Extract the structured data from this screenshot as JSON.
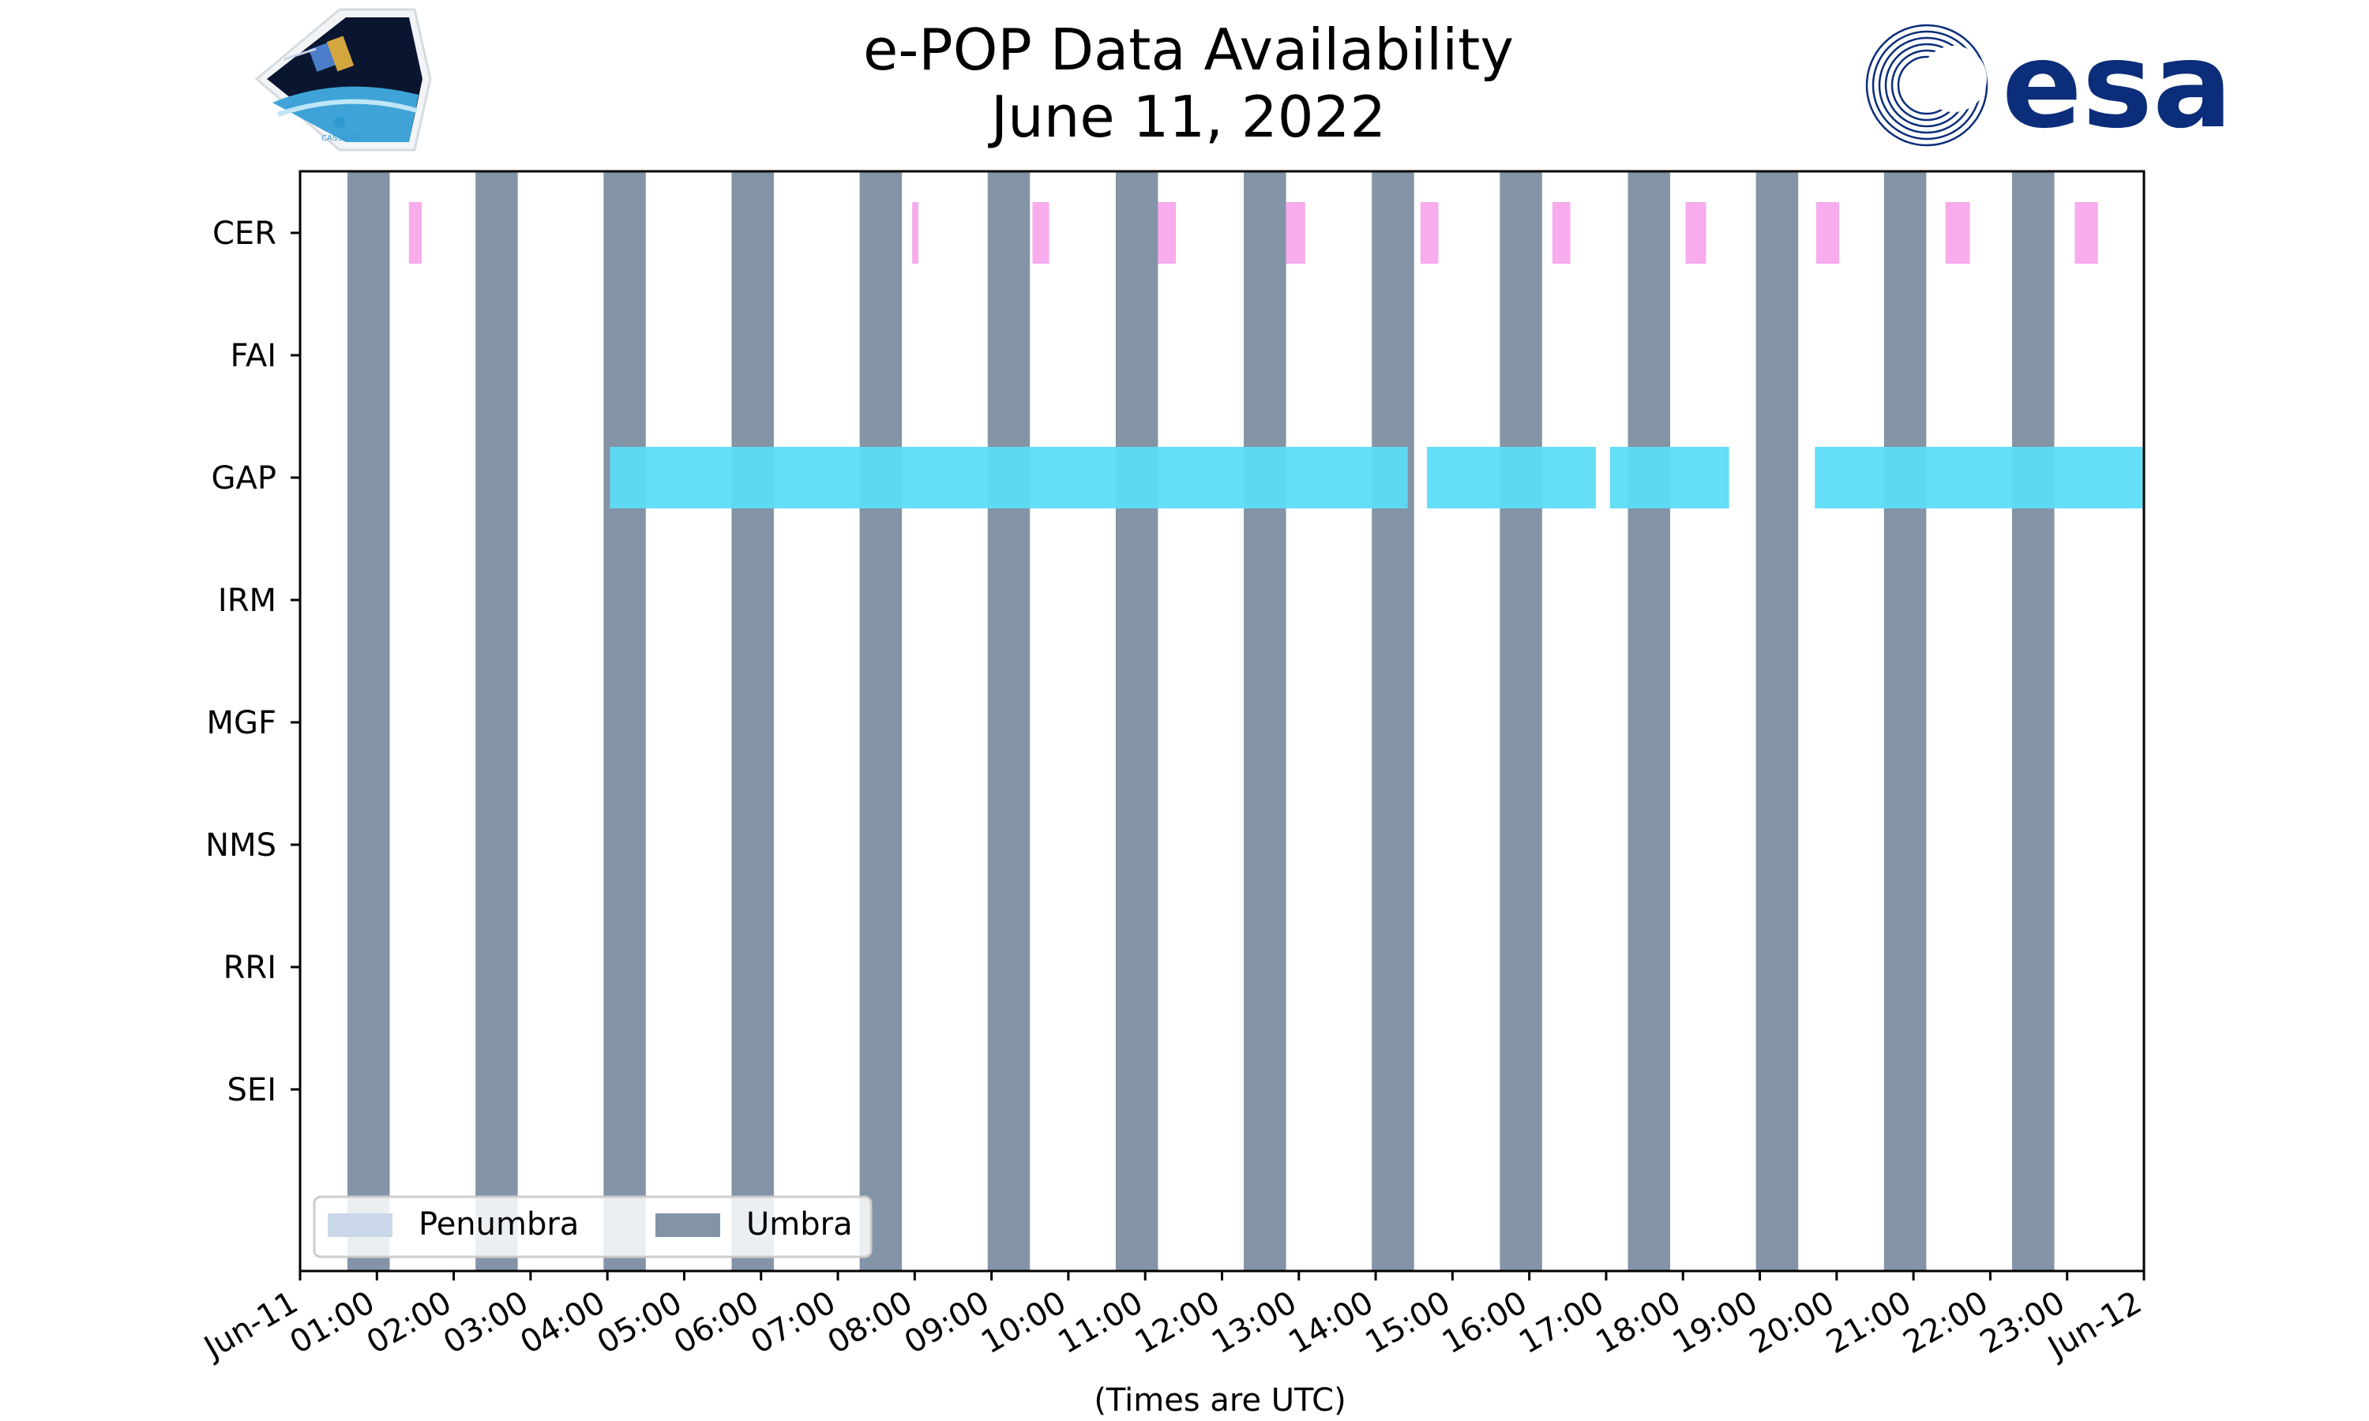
{
  "header": {
    "title_line1": "e-POP Data Availability",
    "title_line2": "June 11, 2022",
    "left_logo_text": "CASSIOPE",
    "right_logo_text": "esa"
  },
  "colors": {
    "umbra": "#8394a6",
    "penumbra": "#c9d7e8",
    "cer": "#f8a6ec",
    "gap": "#5ddcf7",
    "esa_blue": "#0b2d7a"
  },
  "chart_data": {
    "type": "timeline",
    "title": "e-POP Data Availability\nJune 11, 2022",
    "xlabel": "(Times are UTC)",
    "xlim": [
      "2022-06-11 00:00",
      "2022-06-12 00:00"
    ],
    "x_ticks": [
      "Jun-11",
      "01:00",
      "02:00",
      "03:00",
      "04:00",
      "05:00",
      "06:00",
      "07:00",
      "08:00",
      "09:00",
      "10:00",
      "11:00",
      "12:00",
      "13:00",
      "14:00",
      "15:00",
      "16:00",
      "17:00",
      "18:00",
      "19:00",
      "20:00",
      "21:00",
      "22:00",
      "23:00",
      "Jun-12"
    ],
    "categories": [
      "CER",
      "FAI",
      "GAP",
      "IRM",
      "MGF",
      "NMS",
      "RRI",
      "SEI"
    ],
    "legend": {
      "location": "lower-left",
      "entries": [
        "Penumbra",
        "Umbra"
      ]
    },
    "umbra": [
      [
        "00:37",
        "01:10"
      ],
      [
        "02:17",
        "02:50"
      ],
      [
        "03:57",
        "04:30"
      ],
      [
        "05:37",
        "06:10"
      ],
      [
        "07:17",
        "07:50"
      ],
      [
        "08:57",
        "09:30"
      ],
      [
        "10:37",
        "11:10"
      ],
      [
        "12:17",
        "12:50"
      ],
      [
        "13:57",
        "14:30"
      ],
      [
        "15:37",
        "16:10"
      ],
      [
        "17:17",
        "17:50"
      ],
      [
        "18:57",
        "19:30"
      ],
      [
        "20:37",
        "21:10"
      ],
      [
        "22:17",
        "22:50"
      ]
    ],
    "penumbra": [],
    "series": [
      {
        "name": "CER",
        "intervals": [
          [
            "01:25",
            "01:35"
          ],
          [
            "07:58",
            "08:02"
          ],
          [
            "09:32",
            "09:45"
          ],
          [
            "11:10",
            "11:24"
          ],
          [
            "12:50",
            "13:05"
          ],
          [
            "14:35",
            "14:49"
          ],
          [
            "16:18",
            "16:32"
          ],
          [
            "18:02",
            "18:18"
          ],
          [
            "19:44",
            "20:02"
          ],
          [
            "21:25",
            "21:44"
          ],
          [
            "23:06",
            "23:24"
          ]
        ]
      },
      {
        "name": "FAI",
        "intervals": []
      },
      {
        "name": "GAP",
        "intervals": [
          [
            "04:02",
            "14:25"
          ],
          [
            "14:40",
            "16:52"
          ],
          [
            "17:03",
            "18:36"
          ],
          [
            "19:43",
            "24:00"
          ]
        ]
      },
      {
        "name": "IRM",
        "intervals": []
      },
      {
        "name": "MGF",
        "intervals": []
      },
      {
        "name": "NMS",
        "intervals": []
      },
      {
        "name": "RRI",
        "intervals": []
      },
      {
        "name": "SEI",
        "intervals": []
      }
    ]
  }
}
